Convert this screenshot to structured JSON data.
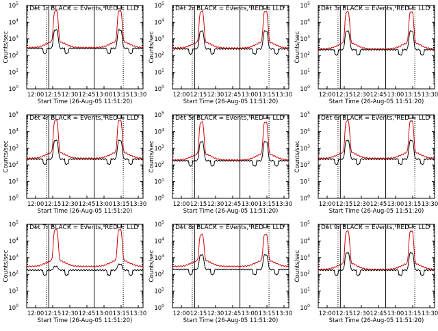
{
  "chart_data": [
    {
      "type": "line",
      "title": "Det 1r  BLACK = Events, RED = LLD",
      "ylabel": "Counts/sec",
      "xlabel": "Start Time (26-Aug-05 11:51:20)",
      "x_ticks": [
        "12:00",
        "12:15",
        "12:30",
        "12:45",
        "13:00",
        "13:15",
        "13:30"
      ],
      "y_ticks": [
        "10^0",
        "10^1",
        "10^2",
        "10^3",
        "10^4",
        "10^5"
      ],
      "ylim": [
        1,
        100000
      ],
      "y_scale": "log",
      "series": [
        {
          "name": "Events",
          "color": "#000000",
          "peaks": [
            3500,
            3500
          ],
          "base": 300
        },
        {
          "name": "LLD",
          "color": "#cc0000",
          "peaks": [
            20000,
            20000
          ],
          "base": 300
        }
      ]
    },
    {
      "type": "line",
      "title": "Det 2r  BLACK = Events, RED = LLD",
      "ylabel": "Counts/sec",
      "xlabel": "Start Time (26-Aug-05 11:51:20)",
      "x_ticks": [
        "12:00",
        "12:15",
        "12:30",
        "12:45",
        "13:00",
        "13:15",
        "13:30"
      ],
      "y_ticks": [
        "10^0",
        "10^1",
        "10^2",
        "10^3",
        "10^4",
        "10^5"
      ],
      "ylim": [
        1,
        100000
      ],
      "y_scale": "log",
      "series": [
        {
          "name": "Events",
          "color": "#000000",
          "peaks": [
            3000,
            3000
          ],
          "base": 280
        },
        {
          "name": "LLD",
          "color": "#cc0000",
          "peaks": [
            18000,
            18000
          ],
          "base": 280
        }
      ]
    },
    {
      "type": "line",
      "title": "Det 3r  BLACK = Events, RED = LLD",
      "ylabel": "Counts/sec",
      "xlabel": "Start Time (26-Aug-05 11:51:20)",
      "x_ticks": [
        "12:00",
        "12:15",
        "12:30",
        "12:45",
        "13:00",
        "13:15",
        "13:30"
      ],
      "y_ticks": [
        "10^0",
        "10^1",
        "10^2",
        "10^3",
        "10^4",
        "10^5"
      ],
      "ylim": [
        1,
        100000
      ],
      "y_scale": "log",
      "series": [
        {
          "name": "Events",
          "color": "#000000",
          "peaks": [
            3000,
            3000
          ],
          "base": 250
        },
        {
          "name": "LLD",
          "color": "#cc0000",
          "peaks": [
            17000,
            17000
          ],
          "base": 250
        }
      ]
    },
    {
      "type": "line",
      "title": "Det 4r  BLACK = Events, RED = LLD",
      "ylabel": "Counts/sec",
      "xlabel": "Start Time (26-Aug-05 11:51:20)",
      "x_ticks": [
        "12:00",
        "12:15",
        "12:30",
        "12:45",
        "13:00",
        "13:15",
        "13:30"
      ],
      "y_ticks": [
        "10^0",
        "10^1",
        "10^2",
        "10^3",
        "10^4",
        "10^5"
      ],
      "ylim": [
        1,
        100000
      ],
      "y_scale": "log",
      "series": [
        {
          "name": "Events",
          "color": "#000000",
          "peaks": [
            3000,
            3000
          ],
          "base": 250
        },
        {
          "name": "LLD",
          "color": "#cc0000",
          "peaks": [
            20000,
            20000
          ],
          "base": 250
        }
      ]
    },
    {
      "type": "line",
      "title": "Det 5r  BLACK = Events, RED = LLD",
      "ylabel": "Counts/sec",
      "xlabel": "Start Time (26-Aug-05 11:51:20)",
      "x_ticks": [
        "12:00",
        "12:15",
        "12:30",
        "12:45",
        "13:00",
        "13:15",
        "13:30"
      ],
      "y_ticks": [
        "10^0",
        "10^1",
        "10^2",
        "10^3",
        "10^4",
        "10^5"
      ],
      "ylim": [
        1,
        100000
      ],
      "y_scale": "log",
      "series": [
        {
          "name": "Events",
          "color": "#000000",
          "peaks": [
            2500,
            2500
          ],
          "base": 200
        },
        {
          "name": "LLD",
          "color": "#cc0000",
          "peaks": [
            15000,
            15000
          ],
          "base": 200
        }
      ]
    },
    {
      "type": "line",
      "title": "Det 6r  BLACK = Events, RED = LLD",
      "ylabel": "Counts/sec",
      "xlabel": "Start Time (26-Aug-05 11:51:20)",
      "x_ticks": [
        "12:00",
        "12:15",
        "12:30",
        "12:45",
        "13:00",
        "13:15",
        "13:30"
      ],
      "y_ticks": [
        "10^0",
        "10^1",
        "10^2",
        "10^3",
        "10^4",
        "10^5"
      ],
      "ylim": [
        1,
        100000
      ],
      "y_scale": "log",
      "series": [
        {
          "name": "Events",
          "color": "#000000",
          "peaks": [
            3000,
            3000
          ],
          "base": 250
        },
        {
          "name": "LLD",
          "color": "#cc0000",
          "peaks": [
            18000,
            18000
          ],
          "base": 250
        }
      ]
    },
    {
      "type": "line",
      "title": "Det 7r  BLACK = Events, RED = LLD",
      "ylabel": "Counts/sec",
      "xlabel": "Start Time (26-Aug-05 11:51:20)",
      "x_ticks": [
        "12:00",
        "12:15",
        "12:30",
        "12:45",
        "13:00",
        "13:15",
        "13:30"
      ],
      "y_ticks": [
        "10^0",
        "10^1",
        "10^2",
        "10^3",
        "10^4",
        "10^5"
      ],
      "ylim": [
        1,
        100000
      ],
      "y_scale": "log",
      "series": [
        {
          "name": "Events",
          "color": "#000000",
          "peaks": [
            300,
            400
          ],
          "base": 200
        },
        {
          "name": "LLD",
          "color": "#cc0000",
          "peaks": [
            20000,
            20000
          ],
          "base": 300
        }
      ]
    },
    {
      "type": "line",
      "title": "Det 8r  BLACK = Events, RED = LLD",
      "ylabel": "Counts/sec",
      "xlabel": "Start Time (26-Aug-05 11:51:20)",
      "x_ticks": [
        "12:00",
        "12:15",
        "12:30",
        "12:45",
        "13:00",
        "13:15",
        "13:30"
      ],
      "y_ticks": [
        "10^0",
        "10^1",
        "10^2",
        "10^3",
        "10^4",
        "10^5"
      ],
      "ylim": [
        1,
        100000
      ],
      "y_scale": "log",
      "series": [
        {
          "name": "Events",
          "color": "#000000",
          "peaks": [
            1500,
            1500
          ],
          "base": 220
        },
        {
          "name": "LLD",
          "color": "#cc0000",
          "peaks": [
            10000,
            10000
          ],
          "base": 300
        }
      ]
    },
    {
      "type": "line",
      "title": "Det 9r  BLACK = Events, RED = LLD",
      "ylabel": "Counts/sec",
      "xlabel": "Start Time (26-Aug-05 11:51:20)",
      "x_ticks": [
        "12:00",
        "12:15",
        "12:30",
        "12:45",
        "13:00",
        "13:15",
        "13:30"
      ],
      "y_ticks": [
        "10^0",
        "10^1",
        "10^2",
        "10^3",
        "10^4",
        "10^5"
      ],
      "ylim": [
        1,
        100000
      ],
      "y_scale": "log",
      "series": [
        {
          "name": "Events",
          "color": "#000000",
          "peaks": [
            2000,
            2000
          ],
          "base": 200
        },
        {
          "name": "LLD",
          "color": "#cc0000",
          "peaks": [
            16000,
            16000
          ],
          "base": 200
        }
      ]
    }
  ]
}
